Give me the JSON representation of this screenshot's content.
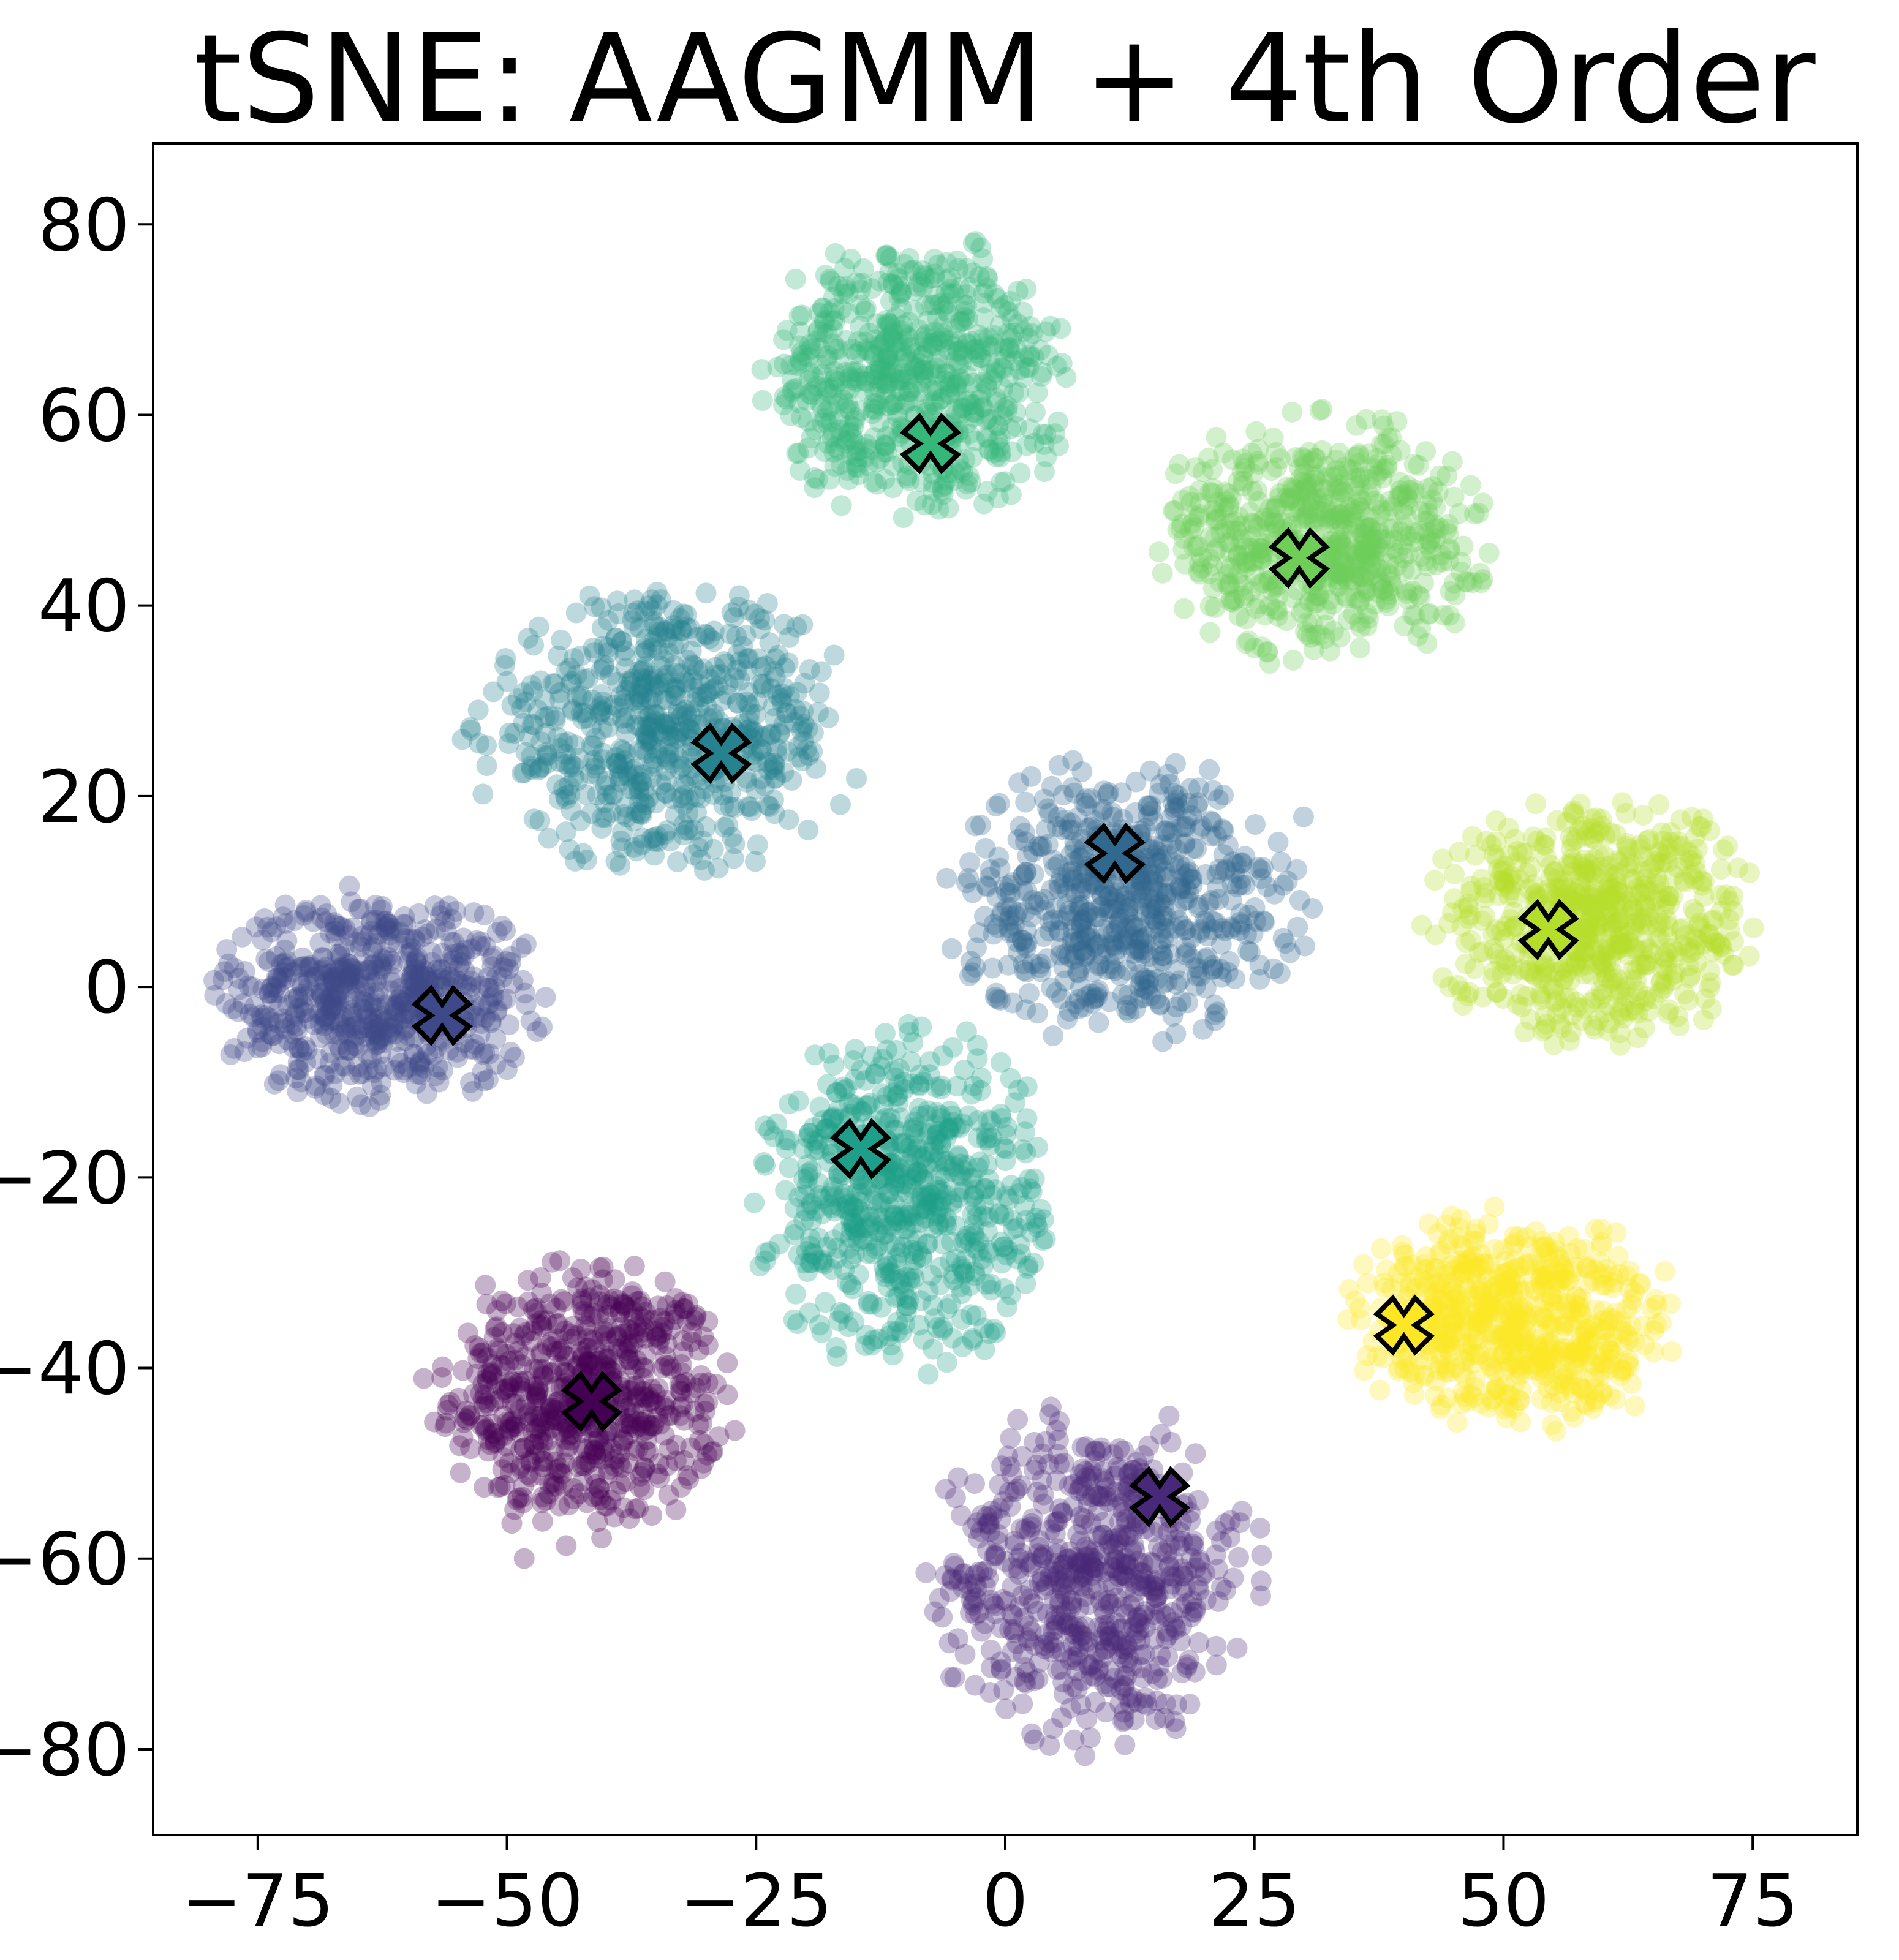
{
  "chart_data": {
    "type": "scatter",
    "title": "tSNE: AAGMM + 4th Order",
    "xlabel": "",
    "ylabel": "",
    "xlim": [
      -85.5,
      85.5
    ],
    "ylim": [
      -89,
      88.5
    ],
    "xticks": [
      -75,
      -50,
      -25,
      0,
      25,
      50,
      75
    ],
    "xtick_labels": [
      "−75",
      "−50",
      "−25",
      "0",
      "25",
      "50",
      "75"
    ],
    "yticks": [
      -80,
      -60,
      -40,
      -20,
      0,
      20,
      40,
      60,
      80
    ],
    "ytick_labels": [
      "−80",
      "−60",
      "−40",
      "−20",
      "0",
      "20",
      "40",
      "60",
      "80"
    ],
    "grid": false,
    "legend": "none",
    "colormap": "viridis",
    "point_alpha": 0.3,
    "series": [
      {
        "cluster": 0,
        "color": "#440154",
        "center": [
          -42,
          -43
        ],
        "spread": [
          9,
          9
        ],
        "n": 650
      },
      {
        "cluster": 1,
        "color": "#482878",
        "center": [
          9,
          -62
        ],
        "spread": [
          10,
          11
        ],
        "n": 650
      },
      {
        "cluster": 2,
        "color": "#3e4989",
        "center": [
          -63,
          -1
        ],
        "spread": [
          10,
          7
        ],
        "n": 650
      },
      {
        "cluster": 3,
        "color": "#31688e",
        "center": [
          12,
          9
        ],
        "spread": [
          11,
          9
        ],
        "n": 650
      },
      {
        "cluster": 4,
        "color": "#26828e",
        "center": [
          -34,
          27
        ],
        "spread": [
          12,
          9
        ],
        "n": 650
      },
      {
        "cluster": 5,
        "color": "#1f9e89",
        "center": [
          -10,
          -22
        ],
        "spread": [
          9,
          11
        ],
        "n": 650
      },
      {
        "cluster": 6,
        "color": "#35b779",
        "center": [
          -9,
          64
        ],
        "spread": [
          10,
          9
        ],
        "n": 650
      },
      {
        "cluster": 7,
        "color": "#6ece58",
        "center": [
          32,
          47
        ],
        "spread": [
          10,
          8
        ],
        "n": 650
      },
      {
        "cluster": 8,
        "color": "#b5de2b",
        "center": [
          59,
          7
        ],
        "spread": [
          10,
          8
        ],
        "n": 650
      },
      {
        "cluster": 9,
        "color": "#fde725",
        "center": [
          51,
          -35
        ],
        "spread": [
          10,
          7
        ],
        "n": 650
      }
    ],
    "centroids": {
      "marker": "X",
      "points": [
        {
          "x": -41.5,
          "y": -43.5,
          "color": "#440154"
        },
        {
          "x": 15.5,
          "y": -53.5,
          "color": "#482878"
        },
        {
          "x": -56.5,
          "y": -3,
          "color": "#3e4989"
        },
        {
          "x": 11,
          "y": 14,
          "color": "#31688e"
        },
        {
          "x": -28.5,
          "y": 24.5,
          "color": "#26828e"
        },
        {
          "x": -14.5,
          "y": -17,
          "color": "#1f9e89"
        },
        {
          "x": -7.5,
          "y": 57,
          "color": "#35b779"
        },
        {
          "x": 29.5,
          "y": 45,
          "color": "#6ece58"
        },
        {
          "x": 54.5,
          "y": 6,
          "color": "#b5de2b"
        },
        {
          "x": 40,
          "y": -35.5,
          "color": "#fde725"
        }
      ]
    }
  }
}
